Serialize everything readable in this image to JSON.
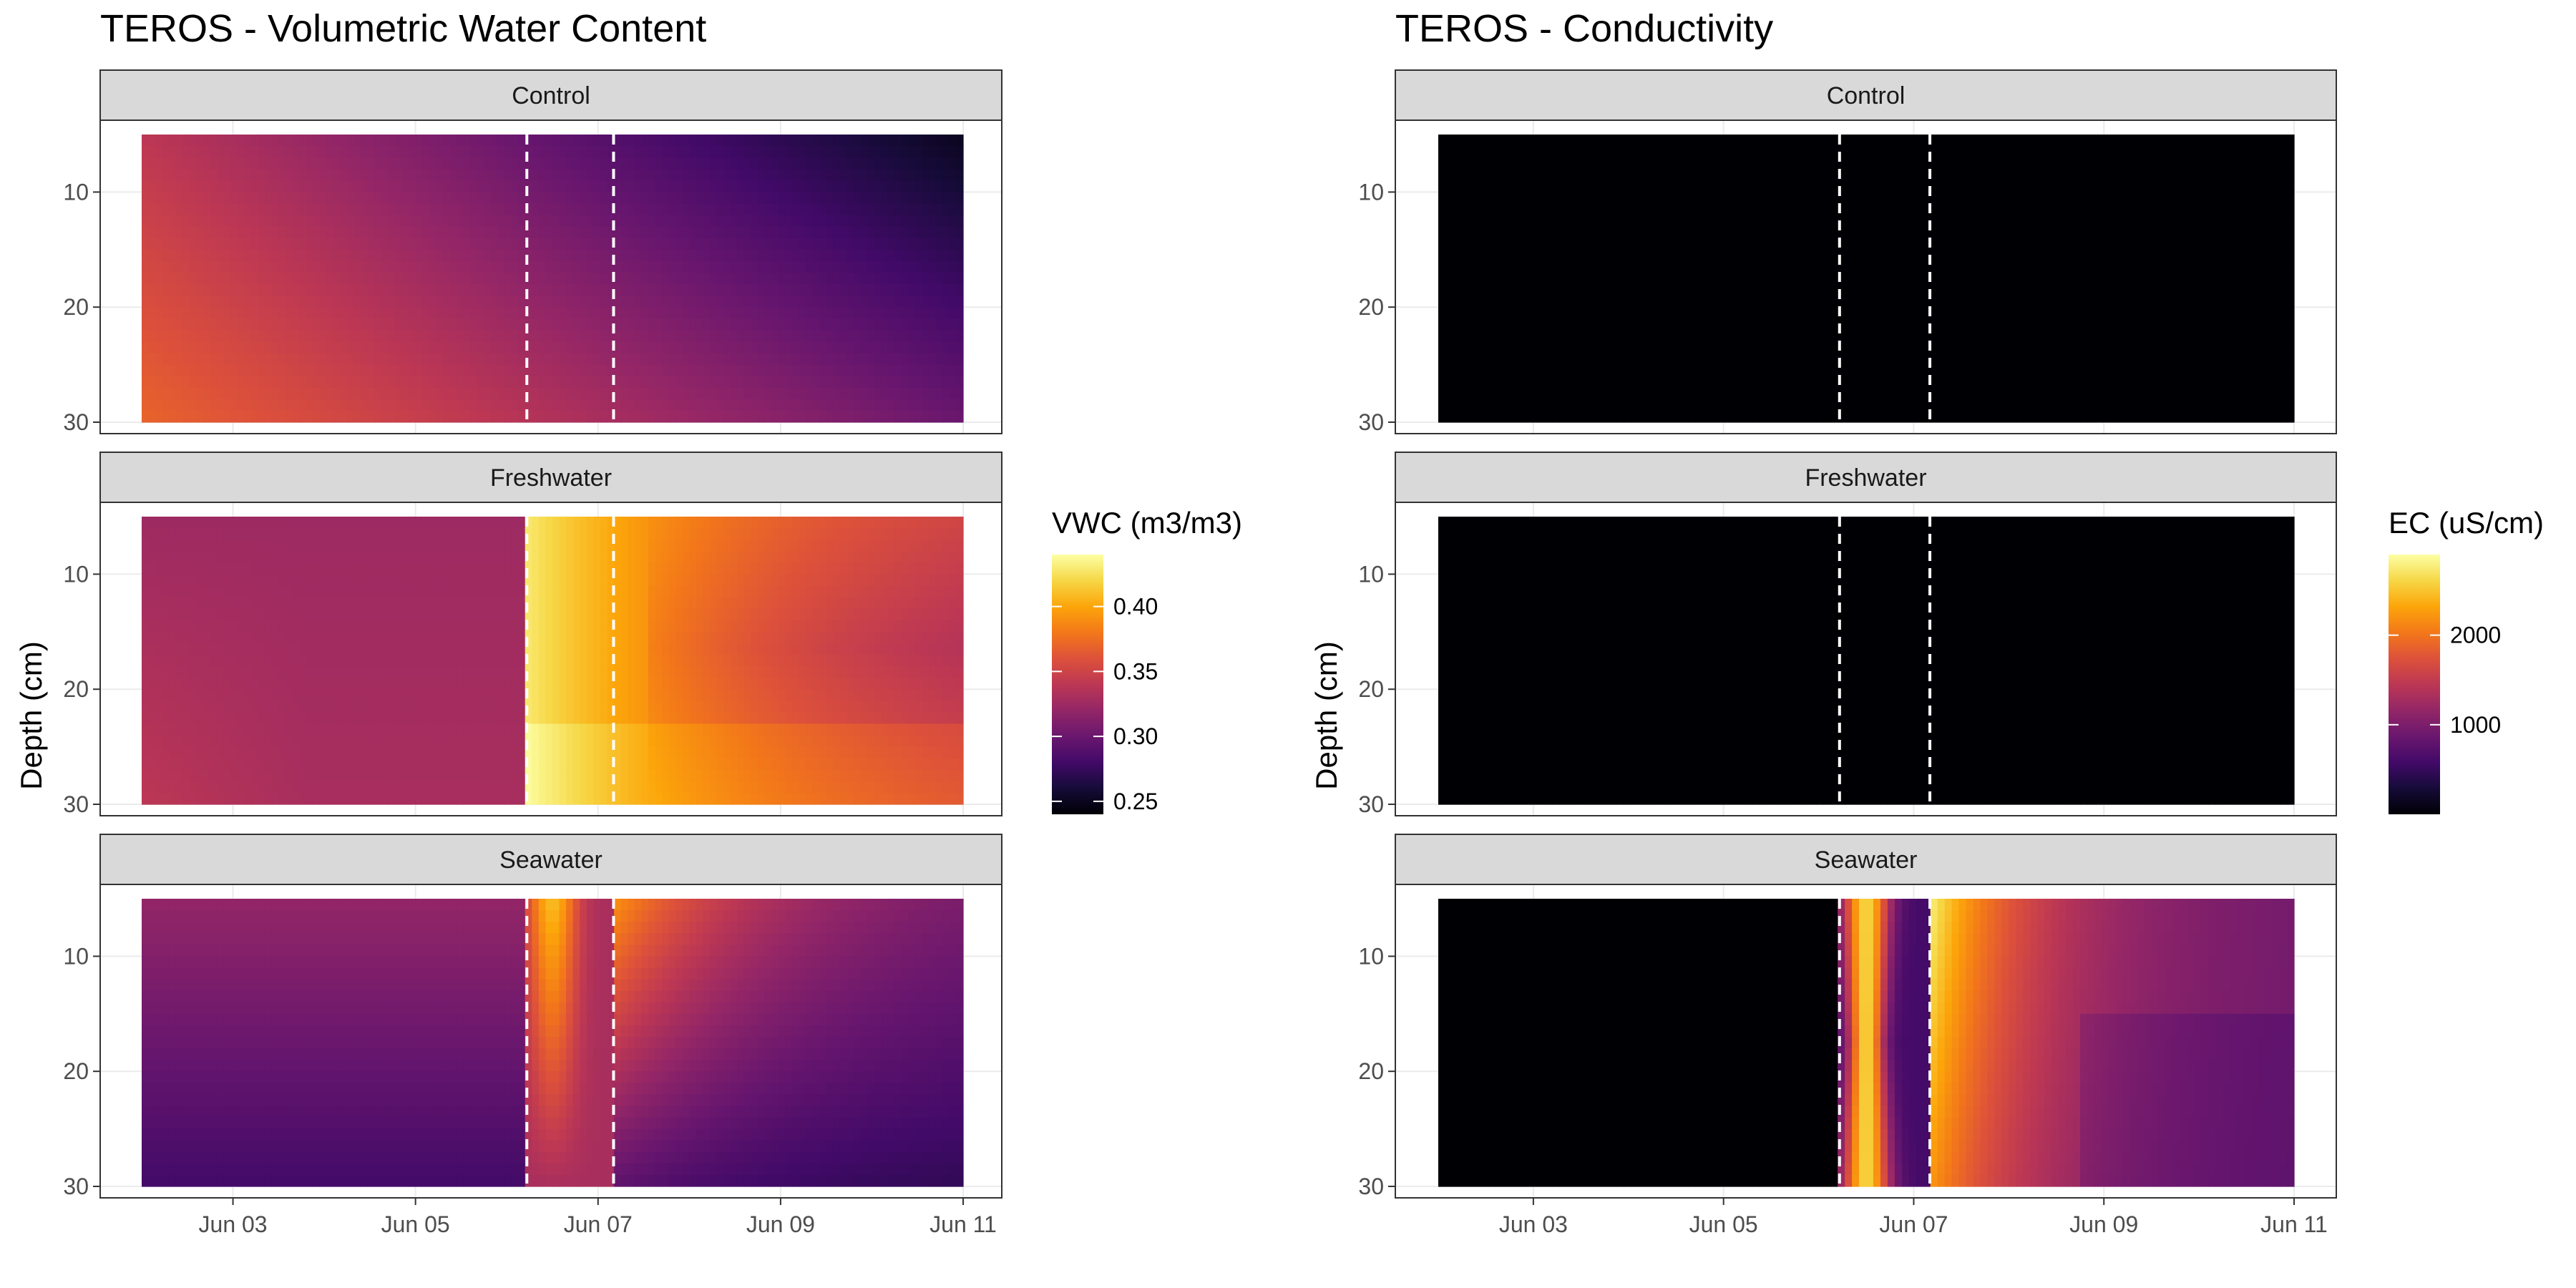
{
  "chart_data": [
    {
      "type": "heatmap",
      "title": "TEROS - Volumetric Water Content",
      "ylabel": "Depth (cm)",
      "xlabel": "",
      "x_ticks": [
        "Jun 03",
        "Jun 05",
        "Jun 07",
        "Jun 09",
        "Jun 11"
      ],
      "x_range": [
        "2023-06-02",
        "2023-06-11"
      ],
      "y_ticks": [
        "10",
        "20",
        "30"
      ],
      "y_range": [
        5,
        30
      ],
      "y_reversed": true,
      "event_lines": [
        "2023-06-06",
        "2023-06-07"
      ],
      "facets": [
        "Control",
        "Freshwater",
        "Seawater"
      ],
      "legend": {
        "title": "VWC (m3/m3)",
        "ticks": [
          "0.40",
          "0.35",
          "0.30",
          "0.25"
        ],
        "range": [
          0.24,
          0.44
        ],
        "palette": "inferno"
      },
      "panel_values": {
        "Control": {
          "shallow_start": 0.34,
          "deep_start": 0.37,
          "shallow_end": 0.25,
          "deep_end": 0.3
        },
        "Freshwater": {
          "before": 0.33,
          "peak": 0.43,
          "after": 0.34
        },
        "Seawater": {
          "before": 0.32,
          "peak": 0.42,
          "after": 0.27
        }
      }
    },
    {
      "type": "heatmap",
      "title": "TEROS - Conductivity",
      "ylabel": "Depth (cm)",
      "xlabel": "",
      "x_ticks": [
        "Jun 03",
        "Jun 05",
        "Jun 07",
        "Jun 09",
        "Jun 11"
      ],
      "x_range": [
        "2023-06-02",
        "2023-06-11"
      ],
      "y_ticks": [
        "10",
        "20",
        "30"
      ],
      "y_range": [
        5,
        30
      ],
      "y_reversed": true,
      "event_lines": [
        "2023-06-06",
        "2023-06-07"
      ],
      "facets": [
        "Control",
        "Freshwater",
        "Seawater"
      ],
      "legend": {
        "title": "EC (uS/cm)",
        "ticks": [
          "2000",
          "1000"
        ],
        "range": [
          0,
          2900
        ],
        "palette": "inferno"
      },
      "panel_values": {
        "Control": {
          "all": 0
        },
        "Freshwater": {
          "all": 0
        },
        "Seawater": {
          "before": 0,
          "peak": 2800,
          "after": 900
        }
      }
    }
  ]
}
